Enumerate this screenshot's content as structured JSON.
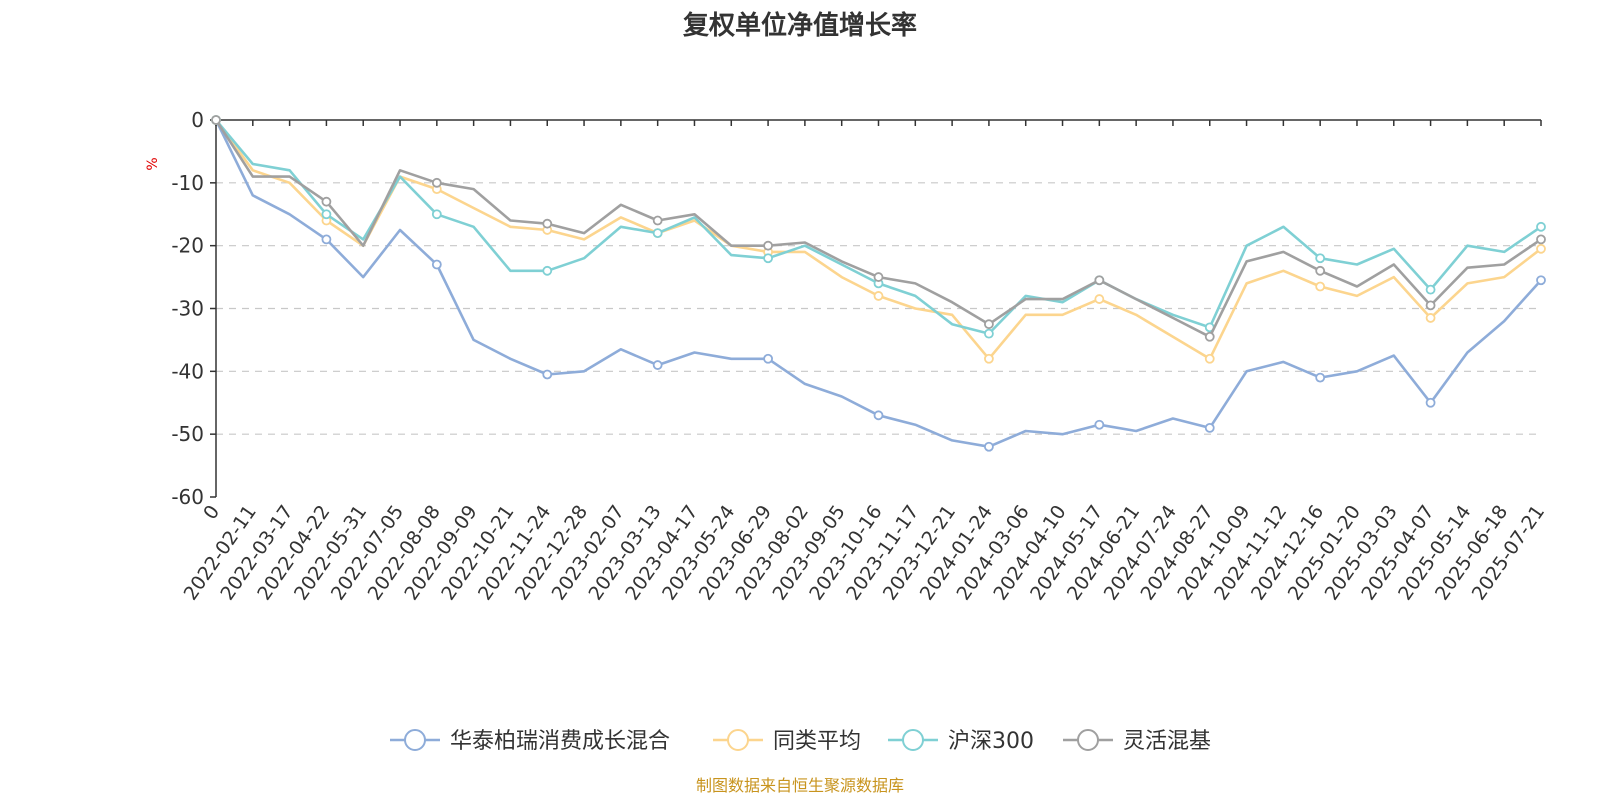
{
  "chart_data": {
    "type": "line",
    "title": "复权单位净值增长率",
    "ylabel": "%",
    "ylim": [
      -60,
      0
    ],
    "yticks": [
      0,
      -10,
      -20,
      -30,
      -40,
      -50,
      -60
    ],
    "categories": [
      "0",
      "2022-02-11",
      "2022-03-17",
      "2022-04-22",
      "2022-05-31",
      "2022-07-05",
      "2022-08-08",
      "2022-09-09",
      "2022-10-21",
      "2022-11-24",
      "2022-12-28",
      "2023-02-07",
      "2023-03-13",
      "2023-04-17",
      "2023-05-24",
      "2023-06-29",
      "2023-08-02",
      "2023-09-05",
      "2023-10-16",
      "2023-11-17",
      "2023-12-21",
      "2024-01-24",
      "2024-03-06",
      "2024-04-10",
      "2024-05-17",
      "2024-06-21",
      "2024-07-24",
      "2024-08-27",
      "2024-10-09",
      "2024-11-12",
      "2024-12-16",
      "2025-01-20",
      "2025-03-03",
      "2025-04-07",
      "2025-05-14",
      "2025-06-18",
      "2025-07-21"
    ],
    "grid": true,
    "legend_position": "bottom",
    "series": [
      {
        "name": "华泰柏瑞消费成长混合",
        "color": "#8eacd9",
        "values": [
          0,
          -12,
          -15,
          -19,
          -25,
          -17.5,
          -23,
          -35,
          -38,
          -40.5,
          -40,
          -36.5,
          -39,
          -37,
          -38,
          -38,
          -42,
          -44,
          -47,
          -48.5,
          -51,
          -52,
          -49.5,
          -50,
          -48.5,
          -49.5,
          -47.5,
          -49,
          -40,
          -38.5,
          -41,
          -40,
          -37.5,
          -45,
          -37,
          -32,
          -25.5
        ]
      },
      {
        "name": "同类平均",
        "color": "#fcd58e",
        "values": [
          0,
          -8,
          -10,
          -16,
          -20,
          -9,
          -11,
          -14,
          -17,
          -17.5,
          -19,
          -15.5,
          -18,
          -16,
          -20,
          -21,
          -21,
          -25,
          -28,
          -30,
          -31,
          -38,
          -31,
          -31,
          -28.5,
          -31,
          -34.5,
          -38,
          -26,
          -24,
          -26.5,
          -28,
          -25,
          -31.5,
          -26,
          -25,
          -20.5
        ]
      },
      {
        "name": "沪深300",
        "color": "#7fd0d4",
        "values": [
          0,
          -7,
          -8,
          -15,
          -19,
          -9,
          -15,
          -17,
          -24,
          -24,
          -22,
          -17,
          -18,
          -15.5,
          -21.5,
          -22,
          -20,
          -23,
          -26,
          -28,
          -32.5,
          -34,
          -28,
          -29,
          -25.5,
          -28.5,
          -31,
          -33,
          -20,
          -17,
          -22,
          -23,
          -20.5,
          -27,
          -20,
          -21,
          -17
        ]
      },
      {
        "name": "灵活混基",
        "color": "#a0a0a0",
        "values": [
          0,
          -9,
          -9,
          -13,
          -20,
          -8,
          -10,
          -11,
          -16,
          -16.5,
          -18,
          -13.5,
          -16,
          -15,
          -20,
          -20,
          -19.5,
          -22.5,
          -25,
          -26,
          -29,
          -32.5,
          -28.5,
          -28.5,
          -25.5,
          -28.5,
          -31.5,
          -34.5,
          -22.5,
          -21,
          -24,
          -26.5,
          -23,
          -29.5,
          -23.5,
          -23,
          -19
        ]
      }
    ]
  },
  "footer": {
    "source": "制图数据来自恒生聚源数据库"
  }
}
